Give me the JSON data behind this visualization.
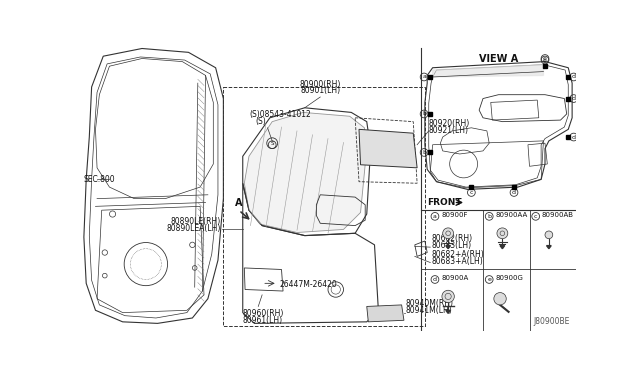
{
  "bg_color": "#ffffff",
  "line_color": "#333333",
  "text_color": "#111111",
  "fig_width": 6.4,
  "fig_height": 3.72,
  "dpi": 100,
  "watermark": "J80900BE",
  "view_a_label": "VIEW A",
  "front_label": "FRONT",
  "sec_label": "SEC.800"
}
